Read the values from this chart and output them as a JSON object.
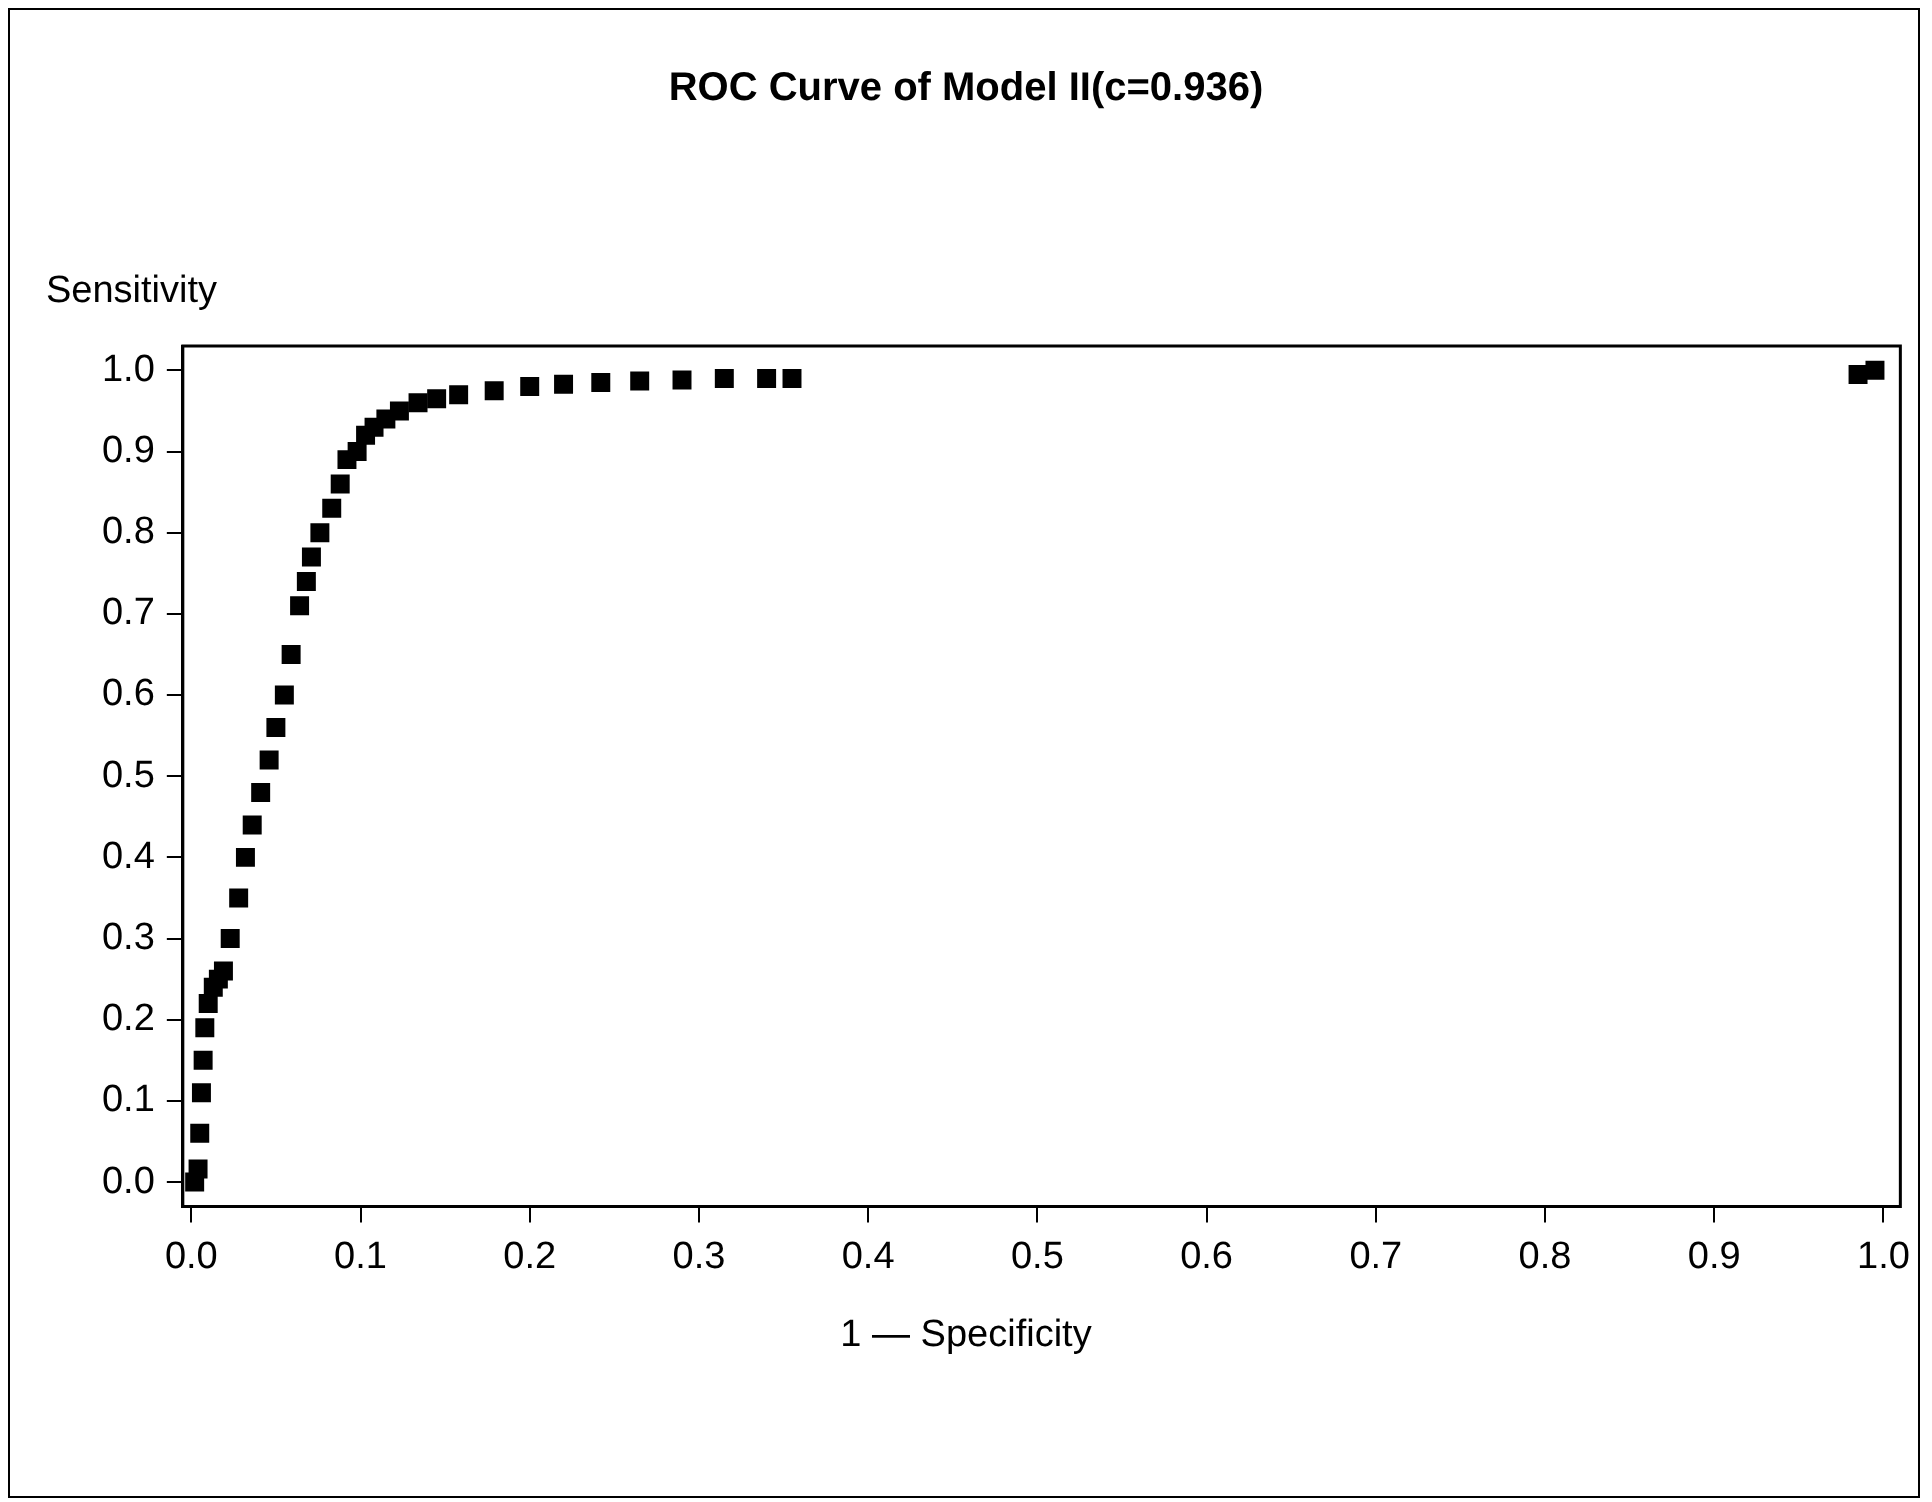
{
  "chart_data": {
    "type": "scatter",
    "title": "ROC Curve of Model II(c=0.936)",
    "xlabel": "1 — Specificity",
    "ylabel": "Sensitivity",
    "marker": "square",
    "grid": false,
    "legend": false,
    "xlim": [
      -0.005,
      1.01
    ],
    "ylim": [
      -0.03,
      1.03
    ],
    "xticks": [
      {
        "value": 0,
        "label": "0.0"
      },
      0.1,
      0.2,
      0.3,
      0.4,
      0.5,
      0.6,
      0.7,
      0.8,
      0.9,
      {
        "value": 1,
        "label": "1.0"
      }
    ],
    "yticks": [
      {
        "value": 0,
        "label": "0.0"
      },
      0.1,
      0.2,
      0.3,
      0.4,
      0.5,
      0.6,
      0.7,
      0.8,
      0.9,
      {
        "value": 1,
        "label": "1.0"
      }
    ],
    "series": [
      {
        "color": "#000000",
        "x": [
          0.002,
          0.004,
          0.005,
          0.006,
          0.007,
          0.008,
          0.01,
          0.013,
          0.016,
          0.019,
          0.023,
          0.028,
          0.032,
          0.036,
          0.041,
          0.046,
          0.05,
          0.055,
          0.059,
          0.064,
          0.068,
          0.071,
          0.076,
          0.083,
          0.088,
          0.092,
          0.098,
          0.103,
          0.108,
          0.115,
          0.123,
          0.134,
          0.145,
          0.158,
          0.179,
          0.2,
          0.22,
          0.242,
          0.265,
          0.29,
          0.315,
          0.34,
          0.355,
          0.985,
          0.995
        ],
        "values": [
          0.0,
          0.016,
          0.06,
          0.11,
          0.15,
          0.19,
          0.22,
          0.24,
          0.25,
          0.26,
          0.3,
          0.35,
          0.4,
          0.44,
          0.48,
          0.52,
          0.56,
          0.6,
          0.65,
          0.71,
          0.74,
          0.77,
          0.8,
          0.83,
          0.86,
          0.89,
          0.9,
          0.92,
          0.93,
          0.94,
          0.95,
          0.96,
          0.965,
          0.97,
          0.975,
          0.98,
          0.983,
          0.985,
          0.987,
          0.988,
          0.99,
          0.99,
          0.99,
          0.995,
          1.0
        ]
      }
    ]
  }
}
